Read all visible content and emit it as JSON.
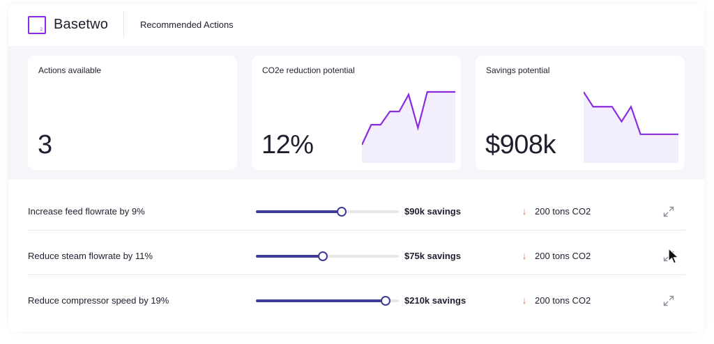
{
  "app": {
    "brand": "Basetwo",
    "logo_glyph": "2",
    "page_title": "Recommended Actions",
    "accent_color": "#8a2be2",
    "slider_color": "#3c3a93",
    "arrow_color": "#e0603c"
  },
  "cards": [
    {
      "label": "Actions available",
      "value": "3"
    },
    {
      "label": "CO2e reduction potential",
      "value": "12%",
      "sparkline": [
        0.0,
        0.38,
        0.38,
        0.63,
        0.63,
        0.95,
        0.32,
        1.0,
        1.0,
        1.0,
        1.0
      ]
    },
    {
      "label": "Savings potential",
      "value": "$908k",
      "sparkline": [
        1.0,
        0.72,
        0.72,
        0.72,
        0.44,
        0.72,
        0.2,
        0.2,
        0.2,
        0.2,
        0.2
      ]
    }
  ],
  "actions": [
    {
      "label": "Increase feed flowrate by 9%",
      "slider_fraction": 0.6,
      "savings": "$90k savings",
      "co2": "200 tons CO2"
    },
    {
      "label": "Reduce steam flowrate by 11%",
      "slider_fraction": 0.47,
      "savings": "$75k savings",
      "co2": "200 tons CO2"
    },
    {
      "label": "Reduce compressor speed by 19%",
      "slider_fraction": 0.905,
      "savings": "$210k savings",
      "co2": "200 tons CO2"
    }
  ],
  "icons": {
    "co2_trend": "arrow-down-icon",
    "row_action": "expand-icon"
  }
}
